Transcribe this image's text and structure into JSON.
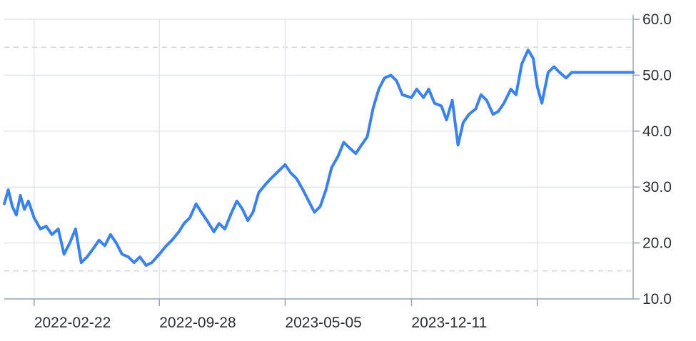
{
  "chart_data": {
    "type": "line",
    "title": "",
    "xlabel": "",
    "ylabel": "",
    "x_range": [
      "2022-01-01",
      "2024-12-31"
    ],
    "ylim": [
      10,
      60
    ],
    "y_ticks": [
      10,
      20,
      30,
      40,
      50,
      60
    ],
    "y_tick_labels": [
      "10.0",
      "20.0",
      "30.0",
      "40.0",
      "50.0",
      "60.0"
    ],
    "y_axis_side": "right",
    "x_ticks": [
      "2022-02-22",
      "2022-09-28",
      "2023-05-05",
      "2023-12-11",
      "2024-07-17"
    ],
    "x_tick_labels": [
      "2022-02-22",
      "2022-09-28",
      "2023-05-05",
      "2023-12-11",
      ""
    ],
    "dashed_reference_lines": [
      15,
      55
    ],
    "grid": true,
    "legend": "none",
    "colors": {
      "line": "#3b82ea",
      "grid": "#e3e6ea",
      "axis": "#9aa3ad",
      "text": "#2b2f33"
    },
    "series": [
      {
        "color": "#3b82ea",
        "x": [
          "2022-01-01",
          "2022-01-08",
          "2022-01-15",
          "2022-01-22",
          "2022-01-29",
          "2022-02-05",
          "2022-02-12",
          "2022-02-22",
          "2022-03-05",
          "2022-03-15",
          "2022-03-25",
          "2022-04-05",
          "2022-04-15",
          "2022-04-25",
          "2022-05-05",
          "2022-05-15",
          "2022-05-25",
          "2022-06-05",
          "2022-06-15",
          "2022-06-25",
          "2022-07-05",
          "2022-07-15",
          "2022-07-25",
          "2022-08-05",
          "2022-08-15",
          "2022-08-25",
          "2022-09-05",
          "2022-09-15",
          "2022-09-28",
          "2022-10-10",
          "2022-10-20",
          "2022-11-01",
          "2022-11-10",
          "2022-11-20",
          "2022-12-01",
          "2022-12-10",
          "2022-12-20",
          "2023-01-01",
          "2023-01-10",
          "2023-01-20",
          "2023-02-01",
          "2023-02-10",
          "2023-02-20",
          "2023-03-01",
          "2023-03-10",
          "2023-03-20",
          "2023-04-01",
          "2023-04-10",
          "2023-04-20",
          "2023-05-05",
          "2023-05-15",
          "2023-05-25",
          "2023-06-05",
          "2023-06-15",
          "2023-06-25",
          "2023-07-05",
          "2023-07-15",
          "2023-07-25",
          "2023-08-05",
          "2023-08-15",
          "2023-08-25",
          "2023-09-05",
          "2023-09-15",
          "2023-09-25",
          "2023-10-05",
          "2023-10-15",
          "2023-10-25",
          "2023-11-05",
          "2023-11-15",
          "2023-11-25",
          "2023-12-11",
          "2023-12-20",
          "2024-01-01",
          "2024-01-10",
          "2024-01-20",
          "2024-02-01",
          "2024-02-10",
          "2024-02-20",
          "2024-03-01",
          "2024-03-10",
          "2024-03-20",
          "2024-04-01",
          "2024-04-10",
          "2024-04-20",
          "2024-05-01",
          "2024-05-10",
          "2024-05-20",
          "2024-06-01",
          "2024-06-10",
          "2024-06-20",
          "2024-07-01",
          "2024-07-10",
          "2024-07-17",
          "2024-07-25",
          "2024-08-05",
          "2024-08-15",
          "2024-08-25",
          "2024-09-05",
          "2024-09-15",
          "2024-09-25",
          "2024-10-05",
          "2024-10-15",
          "2024-10-25",
          "2024-11-05",
          "2024-11-15",
          "2024-11-25",
          "2024-12-05",
          "2024-12-15",
          "2024-12-25",
          "2024-12-31"
        ],
        "values": [
          27.0,
          29.5,
          26.5,
          25.0,
          28.5,
          26.0,
          27.5,
          24.5,
          22.5,
          23.0,
          21.5,
          22.5,
          18.0,
          20.0,
          22.5,
          16.5,
          17.5,
          19.0,
          20.5,
          19.5,
          21.5,
          20.0,
          18.0,
          17.5,
          16.5,
          17.5,
          16.0,
          16.5,
          18.0,
          19.5,
          20.5,
          22.0,
          23.5,
          24.5,
          27.0,
          25.5,
          24.0,
          22.0,
          23.5,
          22.5,
          25.5,
          27.5,
          26.0,
          24.0,
          25.5,
          29.0,
          30.5,
          31.5,
          32.5,
          34.0,
          32.5,
          31.5,
          29.5,
          27.5,
          25.5,
          26.5,
          29.5,
          33.5,
          35.5,
          38.0,
          37.0,
          36.0,
          37.5,
          39.0,
          44.0,
          47.5,
          49.5,
          50.0,
          49.0,
          46.5,
          46.0,
          47.5,
          46.0,
          47.5,
          45.0,
          44.5,
          42.0,
          45.5,
          37.5,
          41.5,
          43.0,
          44.0,
          46.5,
          45.5,
          43.0,
          43.5,
          45.0,
          47.5,
          46.5,
          52.0,
          54.5,
          53.0,
          48.0,
          45.0,
          50.5,
          51.5,
          50.5,
          49.5,
          50.5,
          50.5,
          50.5,
          50.5,
          50.5,
          50.5,
          50.5,
          50.5,
          50.5,
          50.5,
          50.5,
          50.5
        ]
      }
    ]
  }
}
